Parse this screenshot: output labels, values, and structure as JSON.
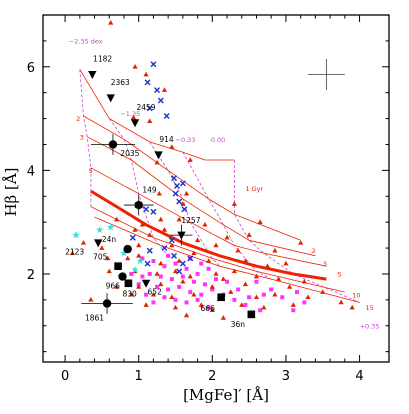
{
  "chart_data": {
    "type": "scatter",
    "xlabel": "[MgFe]′ [Å]",
    "ylabel": "Hβ [Å]",
    "xlim": [
      -0.3,
      4.4
    ],
    "ylim": [
      0.3,
      7.0
    ],
    "xticks": [
      0,
      1,
      2,
      3,
      4
    ],
    "yticks": [
      2,
      4,
      6
    ],
    "grid": false,
    "colors": {
      "frame": "#000000",
      "model_age": "#ee2200",
      "model_age_bold": "#ee2200",
      "model_met": "#cc44cc",
      "red_triangles": "#e02200",
      "blue_crosses": "#1a33cc",
      "magenta_squares": "#ff33ff",
      "cyan_stars": "#33e0e0",
      "labeled_points": "#000000"
    },
    "error_cross": {
      "x": 3.55,
      "y": 5.85,
      "dx": 0.25,
      "dy": 0.3
    },
    "model_grid": {
      "age_labels": [
        {
          "text": "2",
          "x": 0.15,
          "y": 4.95
        },
        {
          "text": "3",
          "x": 0.2,
          "y": 4.6
        },
        {
          "text": "5",
          "x": 0.32,
          "y": 3.95
        },
        {
          "text": "1 Gyr",
          "x": 2.45,
          "y": 3.6
        },
        {
          "text": "2",
          "x": 3.35,
          "y": 2.4
        },
        {
          "text": "3",
          "x": 3.5,
          "y": 2.15
        },
        {
          "text": "5",
          "x": 3.7,
          "y": 1.95
        },
        {
          "text": "10",
          "x": 3.9,
          "y": 1.55
        },
        {
          "text": "15",
          "x": 4.08,
          "y": 1.3
        }
      ],
      "met_labels": [
        {
          "text": "−2.35 dex",
          "x": 0.05,
          "y": 6.45
        },
        {
          "text": "−1.35",
          "x": 0.75,
          "y": 5.05
        },
        {
          "text": "−0.33",
          "x": 1.5,
          "y": 4.55
        },
        {
          "text": "0.00",
          "x": 1.98,
          "y": 4.55
        },
        {
          "text": "+0.35",
          "x": 4.0,
          "y": 0.95
        }
      ],
      "age_lines": [
        [
          [
            0.2,
            5.95
          ],
          [
            0.6,
            5.0
          ],
          [
            1.15,
            4.55
          ],
          [
            1.6,
            4.35
          ],
          [
            1.9,
            4.2
          ],
          [
            2.3,
            4.2
          ]
        ],
        [
          [
            0.25,
            5.05
          ],
          [
            0.8,
            4.6
          ],
          [
            1.4,
            4.0
          ],
          [
            1.95,
            3.45
          ],
          [
            2.3,
            3.15
          ],
          [
            3.2,
            2.65
          ]
        ],
        [
          [
            0.3,
            4.65
          ],
          [
            0.9,
            4.2
          ],
          [
            1.6,
            3.45
          ],
          [
            2.15,
            2.95
          ],
          [
            2.5,
            2.65
          ],
          [
            3.4,
            2.35
          ]
        ],
        [
          [
            0.35,
            4.05
          ],
          [
            1.0,
            3.55
          ],
          [
            1.7,
            3.0
          ],
          [
            2.3,
            2.55
          ],
          [
            2.7,
            2.4
          ],
          [
            3.55,
            2.15
          ]
        ],
        [
          [
            0.35,
            3.3
          ],
          [
            1.2,
            2.7
          ],
          [
            2.0,
            2.3
          ],
          [
            2.6,
            2.05
          ],
          [
            3.8,
            1.65
          ]
        ],
        [
          [
            0.4,
            3.1
          ],
          [
            1.3,
            2.55
          ],
          [
            2.1,
            2.15
          ],
          [
            2.8,
            1.9
          ],
          [
            4.0,
            1.45
          ]
        ]
      ],
      "bold_age_line": [
        [
          0.35,
          3.6
        ],
        [
          0.7,
          3.3
        ],
        [
          1.1,
          2.95
        ],
        [
          1.6,
          2.6
        ],
        [
          2.1,
          2.35
        ],
        [
          2.6,
          2.15
        ],
        [
          3.1,
          2.0
        ],
        [
          3.55,
          1.9
        ]
      ],
      "met_lines": [
        [
          [
            0.2,
            5.95
          ],
          [
            0.25,
            5.05
          ],
          [
            0.3,
            4.65
          ],
          [
            0.35,
            4.05
          ],
          [
            0.35,
            3.3
          ]
        ],
        [
          [
            0.6,
            5.0
          ],
          [
            0.8,
            4.6
          ],
          [
            0.9,
            4.2
          ],
          [
            1.0,
            3.55
          ],
          [
            1.2,
            2.7
          ],
          [
            1.4,
            2.35
          ]
        ],
        [
          [
            1.15,
            4.55
          ],
          [
            1.4,
            4.0
          ],
          [
            1.6,
            3.45
          ],
          [
            1.7,
            3.0
          ],
          [
            2.0,
            2.3
          ],
          [
            2.1,
            2.15
          ]
        ],
        [
          [
            1.6,
            4.35
          ],
          [
            1.95,
            3.45
          ],
          [
            2.15,
            2.95
          ],
          [
            2.3,
            2.55
          ],
          [
            2.6,
            2.05
          ],
          [
            2.8,
            1.9
          ]
        ],
        [
          [
            2.3,
            4.2
          ],
          [
            2.3,
            3.15
          ],
          [
            2.5,
            2.65
          ],
          [
            2.7,
            2.4
          ],
          [
            3.1,
            2.0
          ],
          [
            4.0,
            1.45
          ]
        ]
      ]
    },
    "labeled_points": [
      {
        "name": "1182",
        "x": 0.37,
        "y": 5.85,
        "marker": "triangle-down",
        "lx": 0.38,
        "ly": 6.1
      },
      {
        "name": "2363",
        "x": 0.62,
        "y": 5.4,
        "marker": "triangle-down",
        "lx": 0.62,
        "ly": 5.65
      },
      {
        "name": "2459",
        "x": 0.95,
        "y": 4.92,
        "marker": "triangle-down",
        "lx": 0.97,
        "ly": 5.17
      },
      {
        "name": "914",
        "x": 1.27,
        "y": 4.3,
        "marker": "triangle-down",
        "lx": 1.28,
        "ly": 4.55
      },
      {
        "name": "2035",
        "x": 0.65,
        "y": 4.5,
        "marker": "circle",
        "lx": 0.75,
        "ly": 4.28,
        "xerr": 0.3,
        "yerr": 0.2
      },
      {
        "name": "149",
        "x": 1.0,
        "y": 3.33,
        "marker": "hexagon",
        "lx": 1.05,
        "ly": 3.57,
        "xerr": 0.2,
        "yerr": 0.2
      },
      {
        "name": "1257",
        "x": 1.58,
        "y": 2.75,
        "marker": "triangle-down",
        "lx": 1.58,
        "ly": 2.98,
        "xerr": 0.15,
        "yerr": 0.2
      },
      {
        "name": "24n",
        "x": 0.85,
        "y": 2.48,
        "marker": "circle",
        "lx": 0.5,
        "ly": 2.62
      },
      {
        "name": "2123",
        "x": 0.45,
        "y": 2.6,
        "marker": "triangle-down",
        "lx": 0.0,
        "ly": 2.38
      },
      {
        "name": "705",
        "x": 0.72,
        "y": 2.15,
        "marker": "square",
        "lx": 0.38,
        "ly": 2.28
      },
      {
        "name": "966",
        "x": 0.78,
        "y": 1.95,
        "marker": "circle",
        "lx": 0.55,
        "ly": 1.72
      },
      {
        "name": "830",
        "x": 0.86,
        "y": 1.82,
        "marker": "square",
        "lx": 0.78,
        "ly": 1.56
      },
      {
        "name": "652",
        "x": 1.1,
        "y": 1.82,
        "marker": "triangle-down",
        "lx": 1.12,
        "ly": 1.6
      },
      {
        "name": "666",
        "x": 2.12,
        "y": 1.55,
        "marker": "square",
        "lx": 1.84,
        "ly": 1.28
      },
      {
        "name": "36n",
        "x": 2.53,
        "y": 1.22,
        "marker": "square",
        "lx": 2.25,
        "ly": 0.98
      },
      {
        "name": "1861",
        "x": 0.57,
        "y": 1.43,
        "marker": "circle",
        "lx": 0.27,
        "ly": 1.1,
        "xerr": 0.35,
        "yerr": 0.2
      }
    ],
    "red_triangles": [
      [
        0.62,
        6.85
      ],
      [
        0.95,
        6.0
      ],
      [
        1.1,
        5.85
      ],
      [
        1.35,
        5.55
      ],
      [
        0.93,
        5.02
      ],
      [
        1.15,
        4.95
      ],
      [
        1.45,
        4.45
      ],
      [
        1.25,
        4.15
      ],
      [
        1.7,
        4.2
      ],
      [
        1.65,
        3.55
      ],
      [
        1.28,
        3.55
      ],
      [
        1.6,
        3.35
      ],
      [
        1.3,
        3.05
      ],
      [
        1.55,
        3.05
      ],
      [
        2.3,
        3.35
      ],
      [
        1.05,
        2.95
      ],
      [
        1.9,
        2.95
      ],
      [
        1.15,
        2.75
      ],
      [
        1.8,
        2.65
      ],
      [
        2.2,
        2.7
      ],
      [
        2.5,
        2.75
      ],
      [
        2.65,
        3.0
      ],
      [
        3.2,
        2.6
      ],
      [
        1.0,
        2.55
      ],
      [
        1.45,
        2.55
      ],
      [
        1.75,
        2.4
      ],
      [
        2.35,
        2.45
      ],
      [
        2.85,
        2.45
      ],
      [
        0.25,
        2.6
      ],
      [
        0.5,
        2.5
      ],
      [
        0.58,
        2.3
      ],
      [
        0.85,
        2.3
      ],
      [
        1.0,
        2.35
      ],
      [
        1.3,
        2.2
      ],
      [
        1.55,
        2.25
      ],
      [
        1.95,
        2.25
      ],
      [
        2.45,
        2.25
      ],
      [
        2.75,
        2.15
      ],
      [
        3.0,
        2.2
      ],
      [
        0.6,
        2.05
      ],
      [
        0.95,
        2.05
      ],
      [
        1.25,
        2.0
      ],
      [
        1.5,
        2.05
      ],
      [
        1.7,
        1.95
      ],
      [
        2.05,
        2.0
      ],
      [
        2.3,
        2.05
      ],
      [
        2.6,
        1.95
      ],
      [
        2.9,
        1.9
      ],
      [
        3.25,
        1.85
      ],
      [
        0.7,
        1.75
      ],
      [
        1.0,
        1.75
      ],
      [
        1.3,
        1.8
      ],
      [
        1.6,
        1.85
      ],
      [
        2.0,
        1.75
      ],
      [
        2.15,
        1.9
      ],
      [
        2.45,
        1.8
      ],
      [
        3.05,
        1.75
      ],
      [
        3.5,
        1.65
      ],
      [
        0.9,
        1.6
      ],
      [
        1.2,
        1.6
      ],
      [
        1.45,
        1.55
      ],
      [
        1.75,
        1.6
      ],
      [
        2.25,
        1.65
      ],
      [
        2.6,
        1.55
      ],
      [
        2.85,
        1.6
      ],
      [
        3.3,
        1.55
      ],
      [
        3.75,
        1.45
      ],
      [
        1.1,
        1.4
      ],
      [
        1.5,
        1.35
      ],
      [
        1.85,
        1.4
      ],
      [
        2.0,
        1.3
      ],
      [
        2.4,
        1.4
      ],
      [
        2.7,
        1.35
      ],
      [
        3.1,
        1.4
      ],
      [
        3.9,
        1.35
      ],
      [
        0.35,
        1.5
      ],
      [
        1.65,
        1.2
      ],
      [
        2.15,
        1.15
      ],
      [
        0.95,
        2.85
      ],
      [
        0.7,
        3.05
      ],
      [
        1.35,
        2.85
      ],
      [
        2.05,
        2.55
      ],
      [
        0.1,
        2.4
      ]
    ],
    "blue_crosses": [
      [
        1.2,
        6.05
      ],
      [
        1.12,
        5.7
      ],
      [
        1.25,
        5.55
      ],
      [
        1.3,
        5.35
      ],
      [
        1.15,
        5.2
      ],
      [
        1.38,
        5.05
      ],
      [
        1.48,
        3.85
      ],
      [
        1.52,
        3.7
      ],
      [
        1.5,
        3.55
      ],
      [
        1.6,
        3.75
      ],
      [
        1.55,
        3.4
      ],
      [
        1.62,
        3.25
      ],
      [
        1.1,
        3.25
      ],
      [
        1.2,
        3.2
      ],
      [
        1.45,
        2.65
      ],
      [
        0.92,
        2.7
      ],
      [
        1.15,
        2.45
      ],
      [
        1.35,
        2.5
      ],
      [
        1.6,
        2.2
      ],
      [
        1.48,
        2.35
      ],
      [
        1.7,
        2.3
      ],
      [
        1.12,
        2.2
      ],
      [
        1.55,
        2.05
      ]
    ],
    "magenta_squares": [
      [
        1.05,
        2.3
      ],
      [
        1.2,
        2.25
      ],
      [
        1.35,
        2.15
      ],
      [
        1.5,
        2.2
      ],
      [
        1.65,
        2.1
      ],
      [
        1.8,
        2.0
      ],
      [
        1.95,
        2.1
      ],
      [
        1.15,
        2.0
      ],
      [
        1.3,
        1.95
      ],
      [
        1.45,
        1.9
      ],
      [
        1.6,
        1.95
      ],
      [
        1.75,
        1.85
      ],
      [
        1.9,
        1.8
      ],
      [
        2.05,
        1.9
      ],
      [
        2.2,
        1.85
      ],
      [
        1.0,
        1.8
      ],
      [
        1.25,
        1.75
      ],
      [
        1.4,
        1.7
      ],
      [
        1.55,
        1.75
      ],
      [
        1.7,
        1.65
      ],
      [
        1.85,
        1.6
      ],
      [
        2.0,
        1.7
      ],
      [
        2.15,
        1.6
      ],
      [
        2.35,
        1.7
      ],
      [
        1.1,
        1.6
      ],
      [
        1.35,
        1.55
      ],
      [
        1.5,
        1.5
      ],
      [
        1.65,
        1.45
      ],
      [
        1.8,
        1.5
      ],
      [
        2.3,
        1.5
      ],
      [
        2.5,
        1.55
      ],
      [
        2.7,
        1.6
      ],
      [
        2.95,
        1.55
      ],
      [
        3.15,
        1.65
      ],
      [
        1.2,
        1.45
      ],
      [
        1.95,
        1.35
      ],
      [
        2.45,
        1.4
      ],
      [
        2.65,
        1.3
      ],
      [
        3.1,
        1.3
      ],
      [
        3.25,
        1.45
      ],
      [
        1.7,
        2.3
      ],
      [
        1.85,
        2.2
      ],
      [
        0.9,
        2.0
      ],
      [
        1.05,
        1.95
      ],
      [
        2.6,
        1.85
      ],
      [
        2.8,
        1.7
      ],
      [
        1.4,
        2.35
      ]
    ],
    "cyan_stars": [
      [
        0.15,
        2.75
      ],
      [
        0.62,
        2.9
      ],
      [
        1.02,
        2.25
      ],
      [
        0.95,
        2.08
      ],
      [
        0.47,
        2.85
      ],
      [
        0.8,
        2.4
      ]
    ]
  }
}
